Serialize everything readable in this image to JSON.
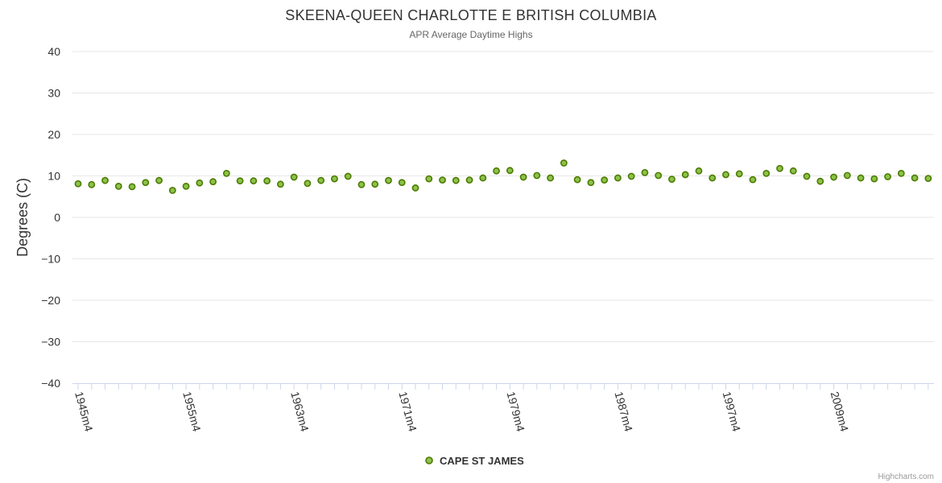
{
  "chart_data": {
    "type": "scatter",
    "title": "SKEENA-QUEEN CHARLOTTE E BRITISH COLUMBIA",
    "subtitle": "APR Average Daytime Highs",
    "ylabel": "Degrees (C)",
    "xlabel": "",
    "ylim": [
      -40,
      40
    ],
    "yticks": [
      40,
      30,
      20,
      10,
      0,
      -10,
      -20,
      -30,
      -40
    ],
    "grid": true,
    "legend_position": "bottom-center",
    "x_tick_labels": [
      {
        "index": 0,
        "label": "1945m4"
      },
      {
        "index": 8,
        "label": "1955m4"
      },
      {
        "index": 16,
        "label": "1963m4"
      },
      {
        "index": 24,
        "label": "1971m4"
      },
      {
        "index": 32,
        "label": "1979m4"
      },
      {
        "index": 40,
        "label": "1987m4"
      },
      {
        "index": 48,
        "label": "1997m4"
      },
      {
        "index": 56,
        "label": "2009m4"
      }
    ],
    "series": [
      {
        "name": "CAPE ST JAMES",
        "color": "#8bc34a",
        "border_color": "#4d7a00",
        "values": [
          8.1,
          7.9,
          8.9,
          7.5,
          7.4,
          8.4,
          8.9,
          6.5,
          7.5,
          8.3,
          8.6,
          10.6,
          8.8,
          8.8,
          8.8,
          8.0,
          9.7,
          8.2,
          8.9,
          9.3,
          9.9,
          7.9,
          8.0,
          8.9,
          8.4,
          7.1,
          9.3,
          9.0,
          8.9,
          9.0,
          9.5,
          11.2,
          11.3,
          9.7,
          10.1,
          9.5,
          13.1,
          9.1,
          8.4,
          9.0,
          9.5,
          9.9,
          10.8,
          10.1,
          9.2,
          10.3,
          11.2,
          9.5,
          10.3,
          10.5,
          9.1,
          10.6,
          11.8,
          11.2,
          9.9,
          8.7,
          9.7,
          10.1,
          9.5,
          9.3,
          9.8,
          10.6,
          9.5,
          9.4
        ]
      }
    ]
  },
  "credits": "Highcharts.com"
}
